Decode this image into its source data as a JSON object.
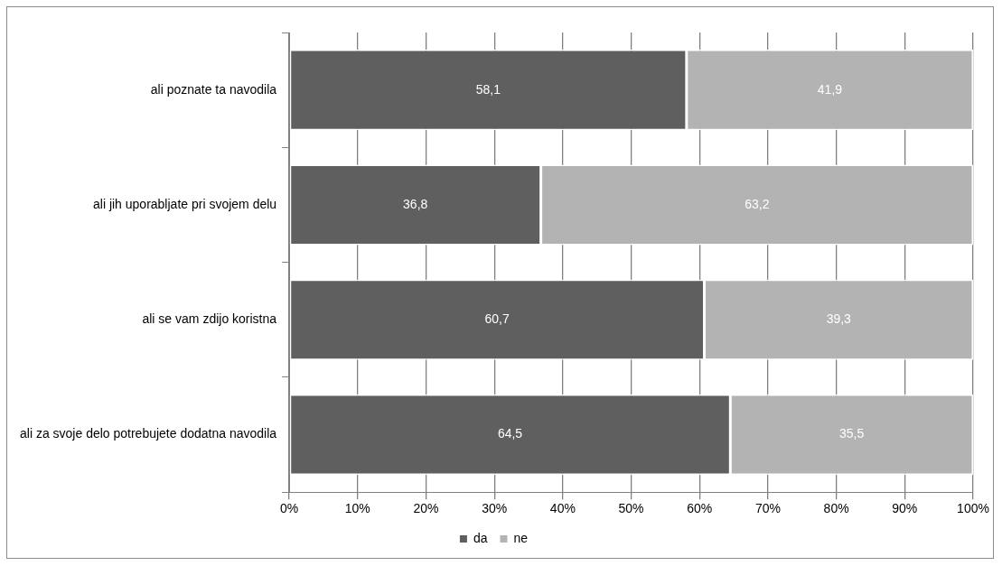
{
  "chart_data": {
    "type": "bar",
    "orientation": "horizontal",
    "stacked": true,
    "categories": [
      "ali poznate ta navodila",
      "ali jih uporabljate pri svojem delu",
      "ali se vam zdijo koristna",
      "ali za svoje delo potrebujete dodatna navodila"
    ],
    "series": [
      {
        "name": "da",
        "color": "#5f5f5f",
        "values": [
          58.1,
          36.8,
          60.7,
          64.5
        ],
        "value_labels": [
          "58,1",
          "36,8",
          "60,7",
          "64,5"
        ]
      },
      {
        "name": "ne",
        "color": "#b3b3b3",
        "values": [
          41.9,
          63.2,
          39.3,
          35.5
        ],
        "value_labels": [
          "41,9",
          "63,2",
          "39,3",
          "35,5"
        ]
      }
    ],
    "xlim": [
      0,
      100
    ],
    "xticks": [
      {
        "value": 0,
        "label": "0%"
      },
      {
        "value": 10,
        "label": "10%"
      },
      {
        "value": 20,
        "label": "20%"
      },
      {
        "value": 30,
        "label": "30%"
      },
      {
        "value": 40,
        "label": "40%"
      },
      {
        "value": 50,
        "label": "50%"
      },
      {
        "value": 60,
        "label": "60%"
      },
      {
        "value": 70,
        "label": "70%"
      },
      {
        "value": 80,
        "label": "80%"
      },
      {
        "value": 90,
        "label": "90%"
      },
      {
        "value": 100,
        "label": "100%"
      }
    ],
    "grid": "x",
    "legend": "bottom"
  }
}
